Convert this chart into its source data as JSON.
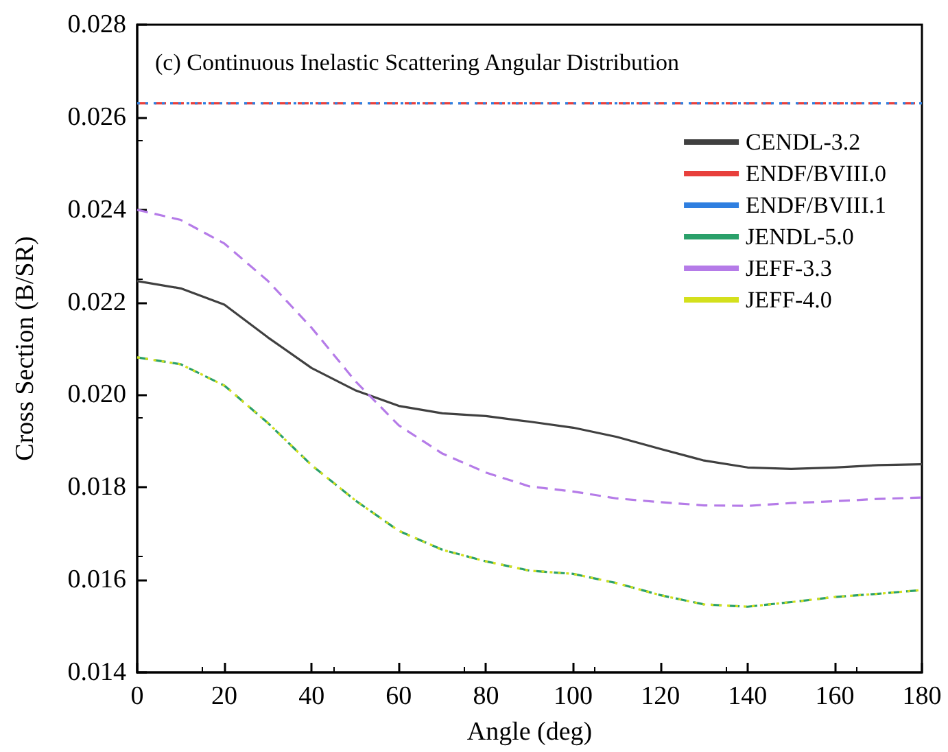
{
  "chart_data": {
    "type": "line",
    "title": "(c) Continuous Inelastic Scattering Angular Distribution",
    "xlabel": "Angle (deg)",
    "ylabel": "Cross Section (B/SR)",
    "x": [
      0,
      10,
      20,
      30,
      40,
      50,
      60,
      70,
      80,
      90,
      100,
      110,
      120,
      130,
      140,
      150,
      160,
      170,
      180
    ],
    "series": [
      {
        "name": "CENDL-3.2",
        "color": "#404040",
        "line_style": "solid",
        "values": [
          0.02246,
          0.0223,
          0.02195,
          0.02124,
          0.02058,
          0.0201,
          0.01976,
          0.0196,
          0.01954,
          0.01942,
          0.01929,
          0.01909,
          0.01883,
          0.01858,
          0.01843,
          0.0184,
          0.01843,
          0.01848,
          0.0185
        ]
      },
      {
        "name": "ENDF/BVIII.0",
        "color": "#e8403c",
        "line_style": "dashed",
        "values": [
          0.0263,
          0.0263,
          0.0263,
          0.0263,
          0.0263,
          0.0263,
          0.0263,
          0.0263,
          0.0263,
          0.0263,
          0.0263,
          0.0263,
          0.0263,
          0.0263,
          0.0263,
          0.0263,
          0.0263,
          0.0263,
          0.0263
        ]
      },
      {
        "name": "ENDF/BVIII.1",
        "color": "#2f7fe0",
        "line_style": "dotted",
        "values": [
          0.0263,
          0.0263,
          0.0263,
          0.0263,
          0.0263,
          0.0263,
          0.0263,
          0.0263,
          0.0263,
          0.0263,
          0.0263,
          0.0263,
          0.0263,
          0.0263,
          0.0263,
          0.0263,
          0.0263,
          0.0263,
          0.0263
        ]
      },
      {
        "name": "JENDL-5.0",
        "color": "#2aa06a",
        "line_style": "dashed",
        "values": [
          0.02081,
          0.02066,
          0.0202,
          0.01939,
          0.01848,
          0.01772,
          0.01706,
          0.01665,
          0.0164,
          0.0162,
          0.01613,
          0.01593,
          0.01567,
          0.01547,
          0.01542,
          0.01552,
          0.01563,
          0.0157,
          0.01578
        ]
      },
      {
        "name": "JEFF-3.3",
        "color": "#b57be8",
        "line_style": "dashed",
        "values": [
          0.024,
          0.02378,
          0.02327,
          0.02246,
          0.02145,
          0.0203,
          0.01934,
          0.01873,
          0.01832,
          0.01802,
          0.01791,
          0.01776,
          0.01768,
          0.01761,
          0.0176,
          0.01766,
          0.0177,
          0.01775,
          0.01778
        ]
      },
      {
        "name": "JEFF-4.0",
        "color": "#d4e01c",
        "line_style": "dotted",
        "values": [
          0.02081,
          0.02066,
          0.0202,
          0.01939,
          0.01848,
          0.01772,
          0.01706,
          0.01665,
          0.0164,
          0.0162,
          0.01613,
          0.01593,
          0.01567,
          0.01547,
          0.01542,
          0.01552,
          0.01563,
          0.0157,
          0.01578
        ]
      }
    ],
    "xlim": [
      0,
      180
    ],
    "xticks": [
      0,
      20,
      40,
      60,
      80,
      100,
      120,
      140,
      160,
      180
    ],
    "ylim": [
      0.014,
      0.028
    ],
    "yticks": [
      {
        "value": 0.014,
        "label": "0.014"
      },
      {
        "value": 0.016,
        "label": "0.016"
      },
      {
        "value": 0.018,
        "label": "0.018"
      },
      {
        "value": 0.02,
        "label": "0.020"
      },
      {
        "value": 0.022,
        "label": "0.022"
      },
      {
        "value": 0.024,
        "label": "0.024"
      },
      {
        "value": 0.026,
        "label": "0.026"
      },
      {
        "value": 0.028,
        "label": "0.028"
      }
    ],
    "legend": "top right",
    "grid": false,
    "marker": "none"
  }
}
